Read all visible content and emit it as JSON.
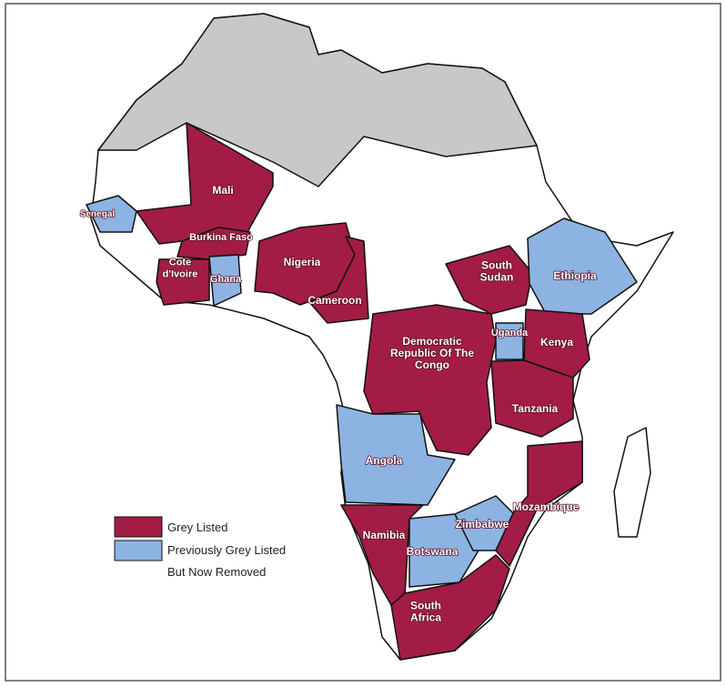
{
  "map": {
    "countries": [
      {
        "label": [
          "Mali"
        ],
        "color": "#a31c45"
      },
      {
        "label": [
          "Senegal"
        ],
        "color": "#8db3e2"
      },
      {
        "label": [
          "Burkina Faso"
        ],
        "color": "#a31c45"
      },
      {
        "label": [
          "Cote",
          "d'Ivoire"
        ],
        "color": "#a31c45"
      },
      {
        "label": [
          "Ghana"
        ],
        "color": "#8db3e2"
      },
      {
        "label": [
          "Nigeria"
        ],
        "color": "#a31c45"
      },
      {
        "label": [
          "Cameroon"
        ],
        "color": "#a31c45"
      },
      {
        "label": [
          "Democratic",
          "Republic Of The",
          "Congo"
        ],
        "color": "#a31c45"
      },
      {
        "label": [
          "South",
          "Sudan"
        ],
        "color": "#a31c45"
      },
      {
        "label": [
          "Ethiopia"
        ],
        "color": "#8db3e2"
      },
      {
        "label": [
          "Uganda"
        ],
        "color": "#8db3e2"
      },
      {
        "label": [
          "Kenya"
        ],
        "color": "#a31c45"
      },
      {
        "label": [
          "Tanzania"
        ],
        "color": "#a31c45"
      },
      {
        "label": [
          "Angola"
        ],
        "color": "#8db3e2"
      },
      {
        "label": [
          "Namibia"
        ],
        "color": "#a31c45"
      },
      {
        "label": [
          "Botswana"
        ],
        "color": "#8db3e2"
      },
      {
        "label": [
          "Zimbabwe"
        ],
        "color": "#8db3e2"
      },
      {
        "label": [
          "Mozambique"
        ],
        "color": "#a31c45"
      },
      {
        "label": [
          "South",
          "Africa"
        ],
        "color": "#a31c45"
      }
    ],
    "legend": [
      {
        "label": [
          "Grey Listed"
        ],
        "color": "#a31c45"
      },
      {
        "label": [
          "Previously Grey Listed",
          "But Now Removed"
        ],
        "color": "#8db3e2"
      }
    ]
  }
}
